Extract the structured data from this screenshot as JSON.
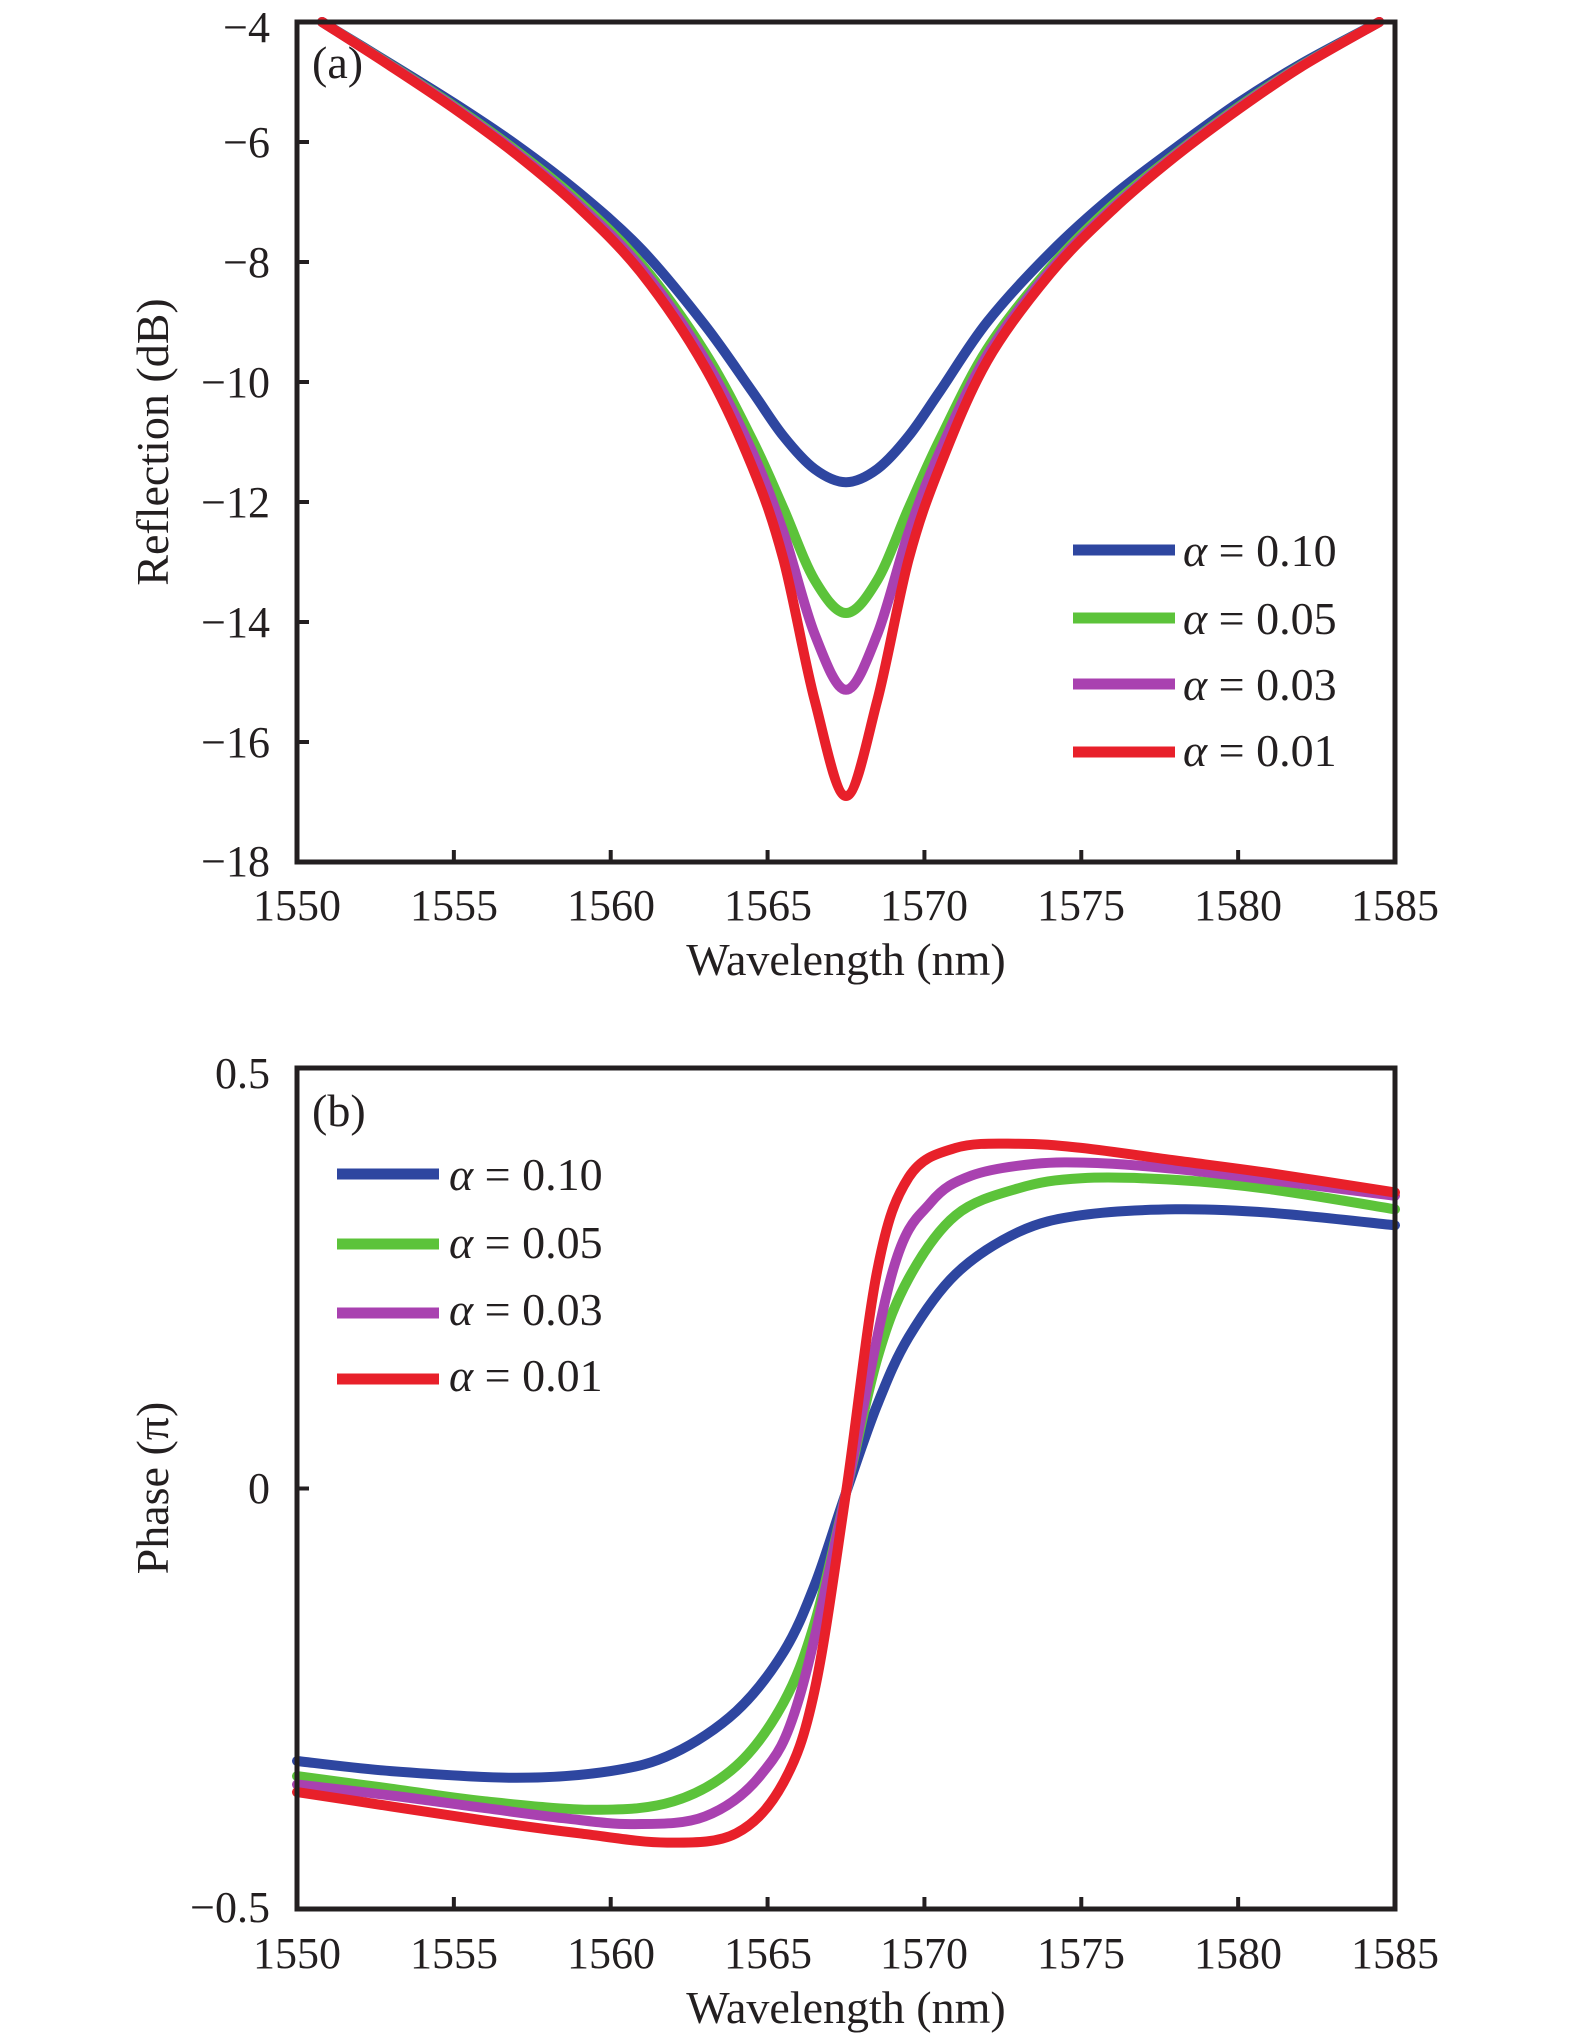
{
  "chart_data": [
    {
      "type": "line",
      "panel_label": "(a)",
      "title": "",
      "xlabel": "Wavelength (nm)",
      "ylabel": "Reflection (dB)",
      "xlim": [
        1550,
        1585
      ],
      "ylim": [
        -18,
        -4
      ],
      "xticks": [
        1550,
        1555,
        1560,
        1565,
        1570,
        1575,
        1580,
        1585
      ],
      "yticks": [
        -18,
        -16,
        -14,
        -12,
        -10,
        -8,
        -6,
        -4
      ],
      "xtick_labels": [
        "1550",
        "1555",
        "1560",
        "1565",
        "1570",
        "1575",
        "1580",
        "1585"
      ],
      "ytick_labels": [
        "−18",
        "−16",
        "−14",
        "−12",
        "−10",
        "−8",
        "−6",
        "−4"
      ],
      "grid": false,
      "legend_position": "right",
      "series": [
        {
          "name": "α = 0.10",
          "alpha_symbol": "α",
          "label_rest": " = 0.10",
          "color": "#2e46a0",
          "x": [
            1550.8,
            1553,
            1555,
            1557,
            1559,
            1561,
            1563,
            1564.5,
            1565.5,
            1566.5,
            1567.5,
            1568.5,
            1569.5,
            1570.5,
            1572,
            1574,
            1576,
            1578,
            1580,
            1582,
            1584.5
          ],
          "y": [
            -4.0,
            -4.7,
            -5.35,
            -6.05,
            -6.85,
            -7.8,
            -9.05,
            -10.15,
            -10.9,
            -11.45,
            -11.67,
            -11.45,
            -10.9,
            -10.15,
            -9.0,
            -7.85,
            -6.9,
            -6.1,
            -5.35,
            -4.7,
            -4.0
          ]
        },
        {
          "name": "α = 0.05",
          "alpha_symbol": "α",
          "label_rest": " = 0.05",
          "color": "#5cc33a",
          "x": [
            1550.8,
            1553,
            1555,
            1557,
            1559,
            1561,
            1563,
            1564.5,
            1565.5,
            1566.5,
            1567.5,
            1568.5,
            1569.5,
            1570.5,
            1572,
            1574,
            1576,
            1578,
            1580,
            1582,
            1584.5
          ],
          "y": [
            -4.0,
            -4.72,
            -5.4,
            -6.15,
            -7.0,
            -8.05,
            -9.5,
            -10.95,
            -12.1,
            -13.3,
            -13.85,
            -13.3,
            -12.1,
            -10.95,
            -9.45,
            -8.1,
            -7.05,
            -6.2,
            -5.42,
            -4.73,
            -4.0
          ]
        },
        {
          "name": "α = 0.03",
          "alpha_symbol": "α",
          "label_rest": " = 0.03",
          "color": "#a941b0",
          "x": [
            1550.8,
            1553,
            1555,
            1557,
            1559,
            1561,
            1563,
            1564.5,
            1565.5,
            1566.5,
            1567.5,
            1568.5,
            1569.5,
            1570.5,
            1572,
            1574,
            1576,
            1578,
            1580,
            1582,
            1584.5
          ],
          "y": [
            -4.0,
            -4.73,
            -5.42,
            -6.18,
            -7.05,
            -8.12,
            -9.62,
            -11.15,
            -12.5,
            -14.2,
            -15.13,
            -14.2,
            -12.5,
            -11.15,
            -9.55,
            -8.15,
            -7.1,
            -6.22,
            -5.44,
            -4.74,
            -4.0
          ]
        },
        {
          "name": "α = 0.01",
          "alpha_symbol": "α",
          "label_rest": " = 0.01",
          "color": "#e8202a",
          "x": [
            1550.8,
            1553,
            1555,
            1557,
            1559,
            1561,
            1563,
            1564.5,
            1565.5,
            1566.5,
            1567.5,
            1568.5,
            1569.5,
            1570.5,
            1572,
            1574,
            1576,
            1578,
            1580,
            1582,
            1584.5
          ],
          "y": [
            -4.0,
            -4.74,
            -5.44,
            -6.21,
            -7.1,
            -8.2,
            -9.75,
            -11.4,
            -12.95,
            -15.3,
            -16.9,
            -15.3,
            -12.95,
            -11.4,
            -9.65,
            -8.2,
            -7.13,
            -6.24,
            -5.46,
            -4.75,
            -4.0
          ]
        }
      ]
    },
    {
      "type": "line",
      "panel_label": "(b)",
      "title": "",
      "xlabel": "Wavelength (nm)",
      "ylabel": "Phase (π)",
      "xlim": [
        1550,
        1585
      ],
      "ylim": [
        -0.5,
        0.5
      ],
      "xticks": [
        1550,
        1555,
        1560,
        1565,
        1570,
        1575,
        1580,
        1585
      ],
      "yticks": [
        -0.5,
        0,
        0.5
      ],
      "xtick_labels": [
        "1550",
        "1555",
        "1560",
        "1565",
        "1570",
        "1575",
        "1580",
        "1585"
      ],
      "ytick_labels": [
        "−0.5",
        "0",
        "0.5"
      ],
      "grid": false,
      "legend_position": "top-left",
      "series": [
        {
          "name": "α = 0.10",
          "alpha_symbol": "α",
          "label_rest": " = 0.10",
          "color": "#2e46a0",
          "x": [
            1550,
            1553,
            1557,
            1560,
            1562,
            1564,
            1565.5,
            1566.5,
            1567.5,
            1568.5,
            1569.5,
            1571,
            1573,
            1575,
            1578,
            1581,
            1585
          ],
          "y": [
            -0.324,
            -0.336,
            -0.344,
            -0.336,
            -0.315,
            -0.265,
            -0.195,
            -0.115,
            -0.005,
            0.1,
            0.18,
            0.255,
            0.305,
            0.325,
            0.332,
            0.328,
            0.313
          ]
        },
        {
          "name": "α = 0.05",
          "alpha_symbol": "α",
          "label_rest": " = 0.05",
          "color": "#5cc33a",
          "x": [
            1550,
            1553,
            1556,
            1559.5,
            1562,
            1564,
            1565.5,
            1566.5,
            1567.5,
            1568.5,
            1569.5,
            1571,
            1573,
            1575,
            1578,
            1581,
            1585
          ],
          "y": [
            -0.342,
            -0.357,
            -0.372,
            -0.382,
            -0.372,
            -0.33,
            -0.255,
            -0.16,
            -0.005,
            0.155,
            0.25,
            0.325,
            0.357,
            0.369,
            0.367,
            0.356,
            0.332
          ]
        },
        {
          "name": "α = 0.03",
          "alpha_symbol": "α",
          "label_rest": " = 0.03",
          "color": "#a941b0",
          "x": [
            1550,
            1553,
            1556,
            1558.5,
            1560.7,
            1563,
            1564.8,
            1566,
            1567.5,
            1569,
            1570.2,
            1571.5,
            1573.5,
            1575.5,
            1578,
            1581,
            1585
          ],
          "y": [
            -0.352,
            -0.365,
            -0.38,
            -0.392,
            -0.399,
            -0.39,
            -0.34,
            -0.25,
            -0.005,
            0.26,
            0.34,
            0.372,
            0.386,
            0.387,
            0.38,
            0.367,
            0.348
          ]
        },
        {
          "name": "α = 0.01",
          "alpha_symbol": "α",
          "label_rest": " = 0.01",
          "color": "#e8202a",
          "x": [
            1550,
            1553,
            1556,
            1559,
            1561.8,
            1564,
            1565.5,
            1566.5,
            1567.5,
            1568.5,
            1569.5,
            1571,
            1573,
            1575,
            1578,
            1581,
            1585
          ],
          "y": [
            -0.361,
            -0.378,
            -0.395,
            -0.41,
            -0.421,
            -0.41,
            -0.35,
            -0.24,
            -0.005,
            0.26,
            0.37,
            0.405,
            0.41,
            0.405,
            0.39,
            0.375,
            0.352
          ]
        }
      ]
    }
  ]
}
